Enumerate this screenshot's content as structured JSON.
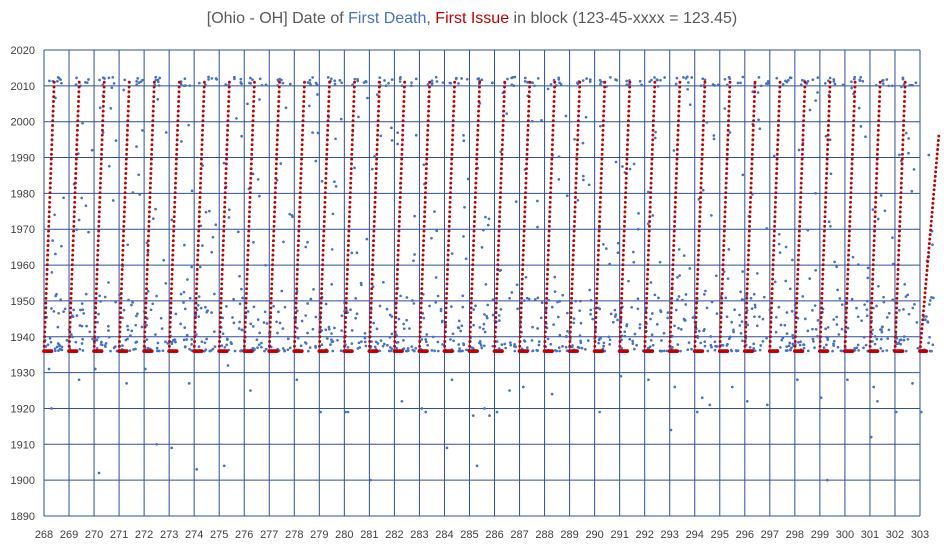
{
  "title": {
    "prefix": "[Ohio - OH] Date of ",
    "series_1_name": "First Death",
    "separator": ", ",
    "series_2_name": "First Issue",
    "suffix": " in block (123-45-xxxx = 123.45)"
  },
  "colors": {
    "grid": "#2e4f9b",
    "first_death": "#4472c4",
    "first_issue": "#c00000",
    "title_text": "#595959"
  },
  "chart_data": {
    "type": "scatter",
    "title": "[Ohio - OH] Date of First Death, First Issue in block (123-45-xxxx = 123.45)",
    "xlim": [
      268,
      303
    ],
    "ylim": [
      1890,
      2020
    ],
    "x_ticks": [
      "268",
      "269",
      "270",
      "271",
      "272",
      "273",
      "274",
      "275",
      "276",
      "277",
      "278",
      "279",
      "280",
      "281",
      "282",
      "283",
      "284",
      "285",
      "286",
      "287",
      "288",
      "289",
      "290",
      "291",
      "292",
      "293",
      "294",
      "295",
      "296",
      "297",
      "298",
      "299",
      "300",
      "301",
      "302",
      "303"
    ],
    "y_ticks": [
      "1890",
      "1900",
      "1910",
      "1920",
      "1930",
      "1940",
      "1950",
      "1960",
      "1970",
      "1980",
      "1990",
      "2000",
      "2010",
      "2020"
    ],
    "grid": true,
    "legend": "none",
    "series": [
      {
        "name": "First Death",
        "marker": "dot",
        "description_pattern": "per block number, mostly 1936–1950 plus scattered later values up to ~2012",
        "outliers": [
          [
            268.2,
            1931
          ],
          [
            268.3,
            1920
          ],
          [
            269.4,
            1928
          ],
          [
            270.05,
            1931
          ],
          [
            270.2,
            1902
          ],
          [
            271.3,
            1927
          ],
          [
            272.05,
            1931
          ],
          [
            272.5,
            1910
          ],
          [
            273.1,
            1909
          ],
          [
            273.8,
            1927
          ],
          [
            274.1,
            1903
          ],
          [
            275.2,
            1904
          ],
          [
            275.35,
            1932
          ],
          [
            276.25,
            1925
          ],
          [
            278.1,
            1928
          ],
          [
            279.05,
            1919
          ],
          [
            280.05,
            1919
          ],
          [
            280.15,
            1919
          ],
          [
            281.05,
            1900
          ],
          [
            281.6,
            1938
          ],
          [
            282.3,
            1922
          ],
          [
            283.1,
            1920
          ],
          [
            283.25,
            1919
          ],
          [
            284.1,
            1909
          ],
          [
            284.3,
            1928
          ],
          [
            285.15,
            1918
          ],
          [
            285.3,
            1904
          ],
          [
            285.6,
            1920
          ],
          [
            285.8,
            1918
          ],
          [
            286.1,
            1919
          ],
          [
            286.6,
            1925
          ],
          [
            287.15,
            1926
          ],
          [
            288.3,
            1924
          ],
          [
            290.2,
            1919
          ],
          [
            291.05,
            1929
          ],
          [
            292.15,
            1928
          ],
          [
            293.05,
            1914
          ],
          [
            293.2,
            1926
          ],
          [
            294.1,
            1919
          ],
          [
            294.3,
            1923
          ],
          [
            294.6,
            1921
          ],
          [
            295.5,
            1926
          ],
          [
            296.1,
            1922
          ],
          [
            296.9,
            1921
          ],
          [
            298.1,
            1928
          ],
          [
            299.05,
            1923
          ],
          [
            299.3,
            1900
          ],
          [
            300.1,
            1928
          ],
          [
            301.05,
            1912
          ],
          [
            301.15,
            1926
          ],
          [
            301.3,
            1922
          ],
          [
            302.05,
            1919
          ],
          [
            302.7,
            1927
          ],
          [
            303.05,
            1919
          ]
        ]
      },
      {
        "name": "First Issue",
        "marker": "dot",
        "description_pattern": "per block number, a dash at ~1936 then values rising from ~1936 to ~2011 across the block",
        "baseline_year": 1936,
        "ramp_start_year": 1936,
        "ramp_end_year": 2011,
        "blocks": [
          268,
          269,
          270,
          271,
          272,
          273,
          274,
          275,
          276,
          277,
          278,
          279,
          280,
          281,
          282,
          283,
          284,
          285,
          286,
          287,
          288,
          289,
          290,
          291,
          292,
          293,
          294,
          295,
          296,
          297,
          298,
          299,
          300,
          301,
          302,
          303
        ]
      }
    ]
  }
}
